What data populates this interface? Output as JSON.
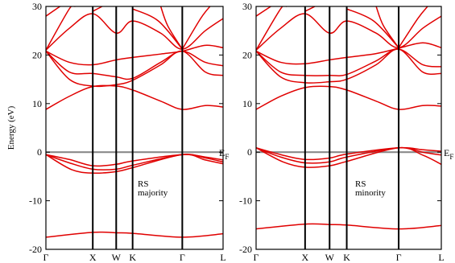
{
  "chart_data": [
    {
      "type": "line",
      "title": "",
      "annotation": [
        "RS",
        "majority"
      ],
      "ylabel": "Energy (eV)",
      "ylim": [
        -20,
        30
      ],
      "yticks": [
        -20,
        -10,
        0,
        10,
        20,
        30
      ],
      "fermi_level": 0,
      "fermi_label": "E",
      "fermi_label_sub": "F",
      "xticks": [
        "Γ",
        "X",
        "W",
        "K",
        "Γ",
        "L"
      ],
      "xtick_pos": [
        0,
        1.0,
        1.5,
        1.85,
        2.91,
        3.78
      ],
      "grid": false,
      "line_color": "#e00000",
      "series": [
        {
          "values": [
            {
              "x": 0,
              "y": -17.5
            },
            {
              "x": 1.0,
              "y": -16.5
            },
            {
              "x": 1.5,
              "y": -16.6
            },
            {
              "x": 1.85,
              "y": -16.7
            },
            {
              "x": 2.91,
              "y": -17.5
            },
            {
              "x": 3.78,
              "y": -16.8
            }
          ]
        },
        {
          "values": [
            {
              "x": 0,
              "y": -0.5
            },
            {
              "x": 0.5,
              "y": -1.5
            },
            {
              "x": 1.0,
              "y": -2.8
            },
            {
              "x": 1.5,
              "y": -2.5
            },
            {
              "x": 1.85,
              "y": -1.8
            },
            {
              "x": 2.91,
              "y": -0.5
            },
            {
              "x": 3.4,
              "y": -1.0
            },
            {
              "x": 3.78,
              "y": -1.6
            }
          ]
        },
        {
          "values": [
            {
              "x": 0,
              "y": -0.5
            },
            {
              "x": 0.5,
              "y": -2.2
            },
            {
              "x": 1.0,
              "y": -3.5
            },
            {
              "x": 1.5,
              "y": -3.5
            },
            {
              "x": 1.85,
              "y": -2.7
            },
            {
              "x": 2.91,
              "y": -0.5
            },
            {
              "x": 3.4,
              "y": -1.2
            },
            {
              "x": 3.78,
              "y": -2.0
            }
          ]
        },
        {
          "values": [
            {
              "x": 0,
              "y": -0.5
            },
            {
              "x": 0.55,
              "y": -3.6
            },
            {
              "x": 1.0,
              "y": -4.3
            },
            {
              "x": 1.5,
              "y": -4.0
            },
            {
              "x": 1.85,
              "y": -3.2
            },
            {
              "x": 2.91,
              "y": -0.5
            },
            {
              "x": 3.4,
              "y": -1.6
            },
            {
              "x": 3.78,
              "y": -2.4
            }
          ]
        },
        {
          "values": [
            {
              "x": 0,
              "y": 8.8
            },
            {
              "x": 0.5,
              "y": 11.5
            },
            {
              "x": 1.0,
              "y": 13.5
            },
            {
              "x": 1.5,
              "y": 13.6
            },
            {
              "x": 1.85,
              "y": 12.8
            },
            {
              "x": 2.45,
              "y": 10.5
            },
            {
              "x": 2.91,
              "y": 8.8
            },
            {
              "x": 3.4,
              "y": 9.6
            },
            {
              "x": 3.78,
              "y": 9.3
            }
          ]
        },
        {
          "values": [
            {
              "x": 0,
              "y": 20.8
            },
            {
              "x": 0.5,
              "y": 15.0
            },
            {
              "x": 1.0,
              "y": 13.6
            },
            {
              "x": 1.5,
              "y": 13.9
            },
            {
              "x": 1.85,
              "y": 14.8
            },
            {
              "x": 2.45,
              "y": 18.0
            },
            {
              "x": 2.91,
              "y": 20.8
            },
            {
              "x": 3.4,
              "y": 16.5
            },
            {
              "x": 3.78,
              "y": 15.8
            }
          ]
        },
        {
          "values": [
            {
              "x": 0,
              "y": 20.8
            },
            {
              "x": 0.5,
              "y": 16.5
            },
            {
              "x": 1.0,
              "y": 16.2
            },
            {
              "x": 1.5,
              "y": 15.5
            },
            {
              "x": 1.85,
              "y": 15.2
            },
            {
              "x": 2.45,
              "y": 18.5
            },
            {
              "x": 2.91,
              "y": 20.8
            },
            {
              "x": 3.4,
              "y": 18.5
            },
            {
              "x": 3.78,
              "y": 17.8
            }
          ]
        },
        {
          "values": [
            {
              "x": 0,
              "y": 20.8
            },
            {
              "x": 0.5,
              "y": 18.5
            },
            {
              "x": 1.0,
              "y": 18.0
            },
            {
              "x": 1.5,
              "y": 19.0
            },
            {
              "x": 1.85,
              "y": 19.5
            },
            {
              "x": 2.45,
              "y": 20.2
            },
            {
              "x": 2.91,
              "y": 20.8
            },
            {
              "x": 3.4,
              "y": 22.0
            },
            {
              "x": 3.78,
              "y": 21.5
            }
          ]
        },
        {
          "values": [
            {
              "x": 0,
              "y": 21.0
            },
            {
              "x": 0.5,
              "y": 25.5
            },
            {
              "x": 1.0,
              "y": 28.5
            },
            {
              "x": 1.5,
              "y": 24.5
            },
            {
              "x": 1.85,
              "y": 27.0
            },
            {
              "x": 2.45,
              "y": 24.5
            },
            {
              "x": 2.91,
              "y": 21.2
            },
            {
              "x": 3.4,
              "y": 25.0
            },
            {
              "x": 3.78,
              "y": 27.5
            }
          ]
        },
        {
          "values": [
            {
              "x": 0,
              "y": 21.0
            },
            {
              "x": 0.5,
              "y": 29.5
            },
            {
              "x": 0.62,
              "y": 30
            }
          ]
        },
        {
          "values": [
            {
              "x": 0,
              "y": 28.0
            },
            {
              "x": 0.3,
              "y": 30
            }
          ]
        },
        {
          "values": [
            {
              "x": 1.0,
              "y": 29.0
            },
            {
              "x": 1.2,
              "y": 30
            }
          ]
        },
        {
          "values": [
            {
              "x": 1.85,
              "y": 29.5
            },
            {
              "x": 2.4,
              "y": 27.0
            },
            {
              "x": 2.91,
              "y": 21.2
            }
          ]
        },
        {
          "values": [
            {
              "x": 2.91,
              "y": 21.2
            },
            {
              "x": 3.3,
              "y": 27.5
            },
            {
              "x": 3.5,
              "y": 30
            }
          ]
        },
        {
          "values": [
            {
              "x": 2.91,
              "y": 21.2
            },
            {
              "x": 2.6,
              "y": 26.0
            },
            {
              "x": 2.45,
              "y": 30
            }
          ]
        }
      ]
    },
    {
      "type": "line",
      "title": "",
      "annotation": [
        "RS",
        "minority"
      ],
      "ylabel": "",
      "ylim": [
        -20,
        30
      ],
      "yticks": [
        -20,
        -10,
        0,
        10,
        20,
        30
      ],
      "fermi_level": 0,
      "fermi_label": "E",
      "fermi_label_sub": "F",
      "xticks": [
        "Γ",
        "X",
        "W",
        "K",
        "Γ",
        "L"
      ],
      "xtick_pos": [
        0,
        1.0,
        1.5,
        1.85,
        2.91,
        3.78
      ],
      "grid": false,
      "line_color": "#e00000",
      "series": [
        {
          "values": [
            {
              "x": 0,
              "y": -15.8
            },
            {
              "x": 1.0,
              "y": -14.8
            },
            {
              "x": 1.5,
              "y": -14.9
            },
            {
              "x": 1.85,
              "y": -15.0
            },
            {
              "x": 2.91,
              "y": -15.8
            },
            {
              "x": 3.78,
              "y": -15.1
            }
          ]
        },
        {
          "values": [
            {
              "x": 0,
              "y": 0.9
            },
            {
              "x": 0.5,
              "y": -0.5
            },
            {
              "x": 1.0,
              "y": -1.5
            },
            {
              "x": 1.5,
              "y": -1.2
            },
            {
              "x": 1.85,
              "y": -0.4
            },
            {
              "x": 2.91,
              "y": 0.9
            },
            {
              "x": 3.4,
              "y": 0.5
            },
            {
              "x": 3.78,
              "y": 0.2
            }
          ]
        },
        {
          "values": [
            {
              "x": 0,
              "y": 0.9
            },
            {
              "x": 0.5,
              "y": -1.0
            },
            {
              "x": 1.0,
              "y": -2.2
            },
            {
              "x": 1.5,
              "y": -2.0
            },
            {
              "x": 1.85,
              "y": -1.0
            },
            {
              "x": 2.91,
              "y": 0.9
            },
            {
              "x": 3.4,
              "y": 0.0
            },
            {
              "x": 3.78,
              "y": -0.6
            }
          ]
        },
        {
          "values": [
            {
              "x": 0,
              "y": 0.9
            },
            {
              "x": 0.55,
              "y": -2.0
            },
            {
              "x": 1.0,
              "y": -3.1
            },
            {
              "x": 1.5,
              "y": -2.8
            },
            {
              "x": 1.85,
              "y": -1.9
            },
            {
              "x": 2.91,
              "y": 0.9
            },
            {
              "x": 3.4,
              "y": -0.6
            },
            {
              "x": 3.78,
              "y": -2.5
            }
          ]
        },
        {
          "values": [
            {
              "x": 0,
              "y": 8.8
            },
            {
              "x": 0.5,
              "y": 11.5
            },
            {
              "x": 1.0,
              "y": 13.3
            },
            {
              "x": 1.5,
              "y": 13.5
            },
            {
              "x": 1.85,
              "y": 12.8
            },
            {
              "x": 2.45,
              "y": 10.5
            },
            {
              "x": 2.91,
              "y": 8.8
            },
            {
              "x": 3.4,
              "y": 9.6
            },
            {
              "x": 3.78,
              "y": 9.5
            }
          ]
        },
        {
          "values": [
            {
              "x": 0,
              "y": 20.8
            },
            {
              "x": 0.5,
              "y": 15.5
            },
            {
              "x": 1.0,
              "y": 14.3
            },
            {
              "x": 1.5,
              "y": 14.5
            },
            {
              "x": 1.85,
              "y": 15.0
            },
            {
              "x": 2.45,
              "y": 18.0
            },
            {
              "x": 2.91,
              "y": 21.2
            },
            {
              "x": 3.4,
              "y": 16.5
            },
            {
              "x": 3.78,
              "y": 16.2
            }
          ]
        },
        {
          "values": [
            {
              "x": 0,
              "y": 20.8
            },
            {
              "x": 0.5,
              "y": 16.5
            },
            {
              "x": 1.0,
              "y": 15.8
            },
            {
              "x": 1.5,
              "y": 15.8
            },
            {
              "x": 1.85,
              "y": 16.0
            },
            {
              "x": 2.45,
              "y": 18.8
            },
            {
              "x": 2.91,
              "y": 21.2
            },
            {
              "x": 3.4,
              "y": 18.0
            },
            {
              "x": 3.78,
              "y": 17.6
            }
          ]
        },
        {
          "values": [
            {
              "x": 0,
              "y": 20.8
            },
            {
              "x": 0.5,
              "y": 18.5
            },
            {
              "x": 1.0,
              "y": 18.2
            },
            {
              "x": 1.5,
              "y": 19.0
            },
            {
              "x": 1.85,
              "y": 19.5
            },
            {
              "x": 2.45,
              "y": 20.3
            },
            {
              "x": 2.91,
              "y": 21.4
            },
            {
              "x": 3.4,
              "y": 22.5
            },
            {
              "x": 3.78,
              "y": 21.5
            }
          ]
        },
        {
          "values": [
            {
              "x": 0,
              "y": 21.0
            },
            {
              "x": 0.5,
              "y": 25.5
            },
            {
              "x": 1.0,
              "y": 28.5
            },
            {
              "x": 1.5,
              "y": 24.5
            },
            {
              "x": 1.85,
              "y": 27.0
            },
            {
              "x": 2.45,
              "y": 24.5
            },
            {
              "x": 2.91,
              "y": 21.5
            },
            {
              "x": 3.4,
              "y": 25.5
            },
            {
              "x": 3.78,
              "y": 28.0
            }
          ]
        },
        {
          "values": [
            {
              "x": 0,
              "y": 21.0
            },
            {
              "x": 0.5,
              "y": 29.5
            },
            {
              "x": 0.62,
              "y": 30
            }
          ]
        },
        {
          "values": [
            {
              "x": 0,
              "y": 28.0
            },
            {
              "x": 0.3,
              "y": 30
            }
          ]
        },
        {
          "values": [
            {
              "x": 1.0,
              "y": 29.0
            },
            {
              "x": 1.2,
              "y": 30
            }
          ]
        },
        {
          "values": [
            {
              "x": 1.85,
              "y": 29.5
            },
            {
              "x": 2.4,
              "y": 27.0
            },
            {
              "x": 2.91,
              "y": 21.5
            }
          ]
        },
        {
          "values": [
            {
              "x": 2.91,
              "y": 21.5
            },
            {
              "x": 3.3,
              "y": 27.5
            },
            {
              "x": 3.5,
              "y": 30
            }
          ]
        },
        {
          "values": [
            {
              "x": 2.91,
              "y": 21.5
            },
            {
              "x": 2.6,
              "y": 26.0
            },
            {
              "x": 2.45,
              "y": 30
            }
          ]
        }
      ]
    }
  ]
}
